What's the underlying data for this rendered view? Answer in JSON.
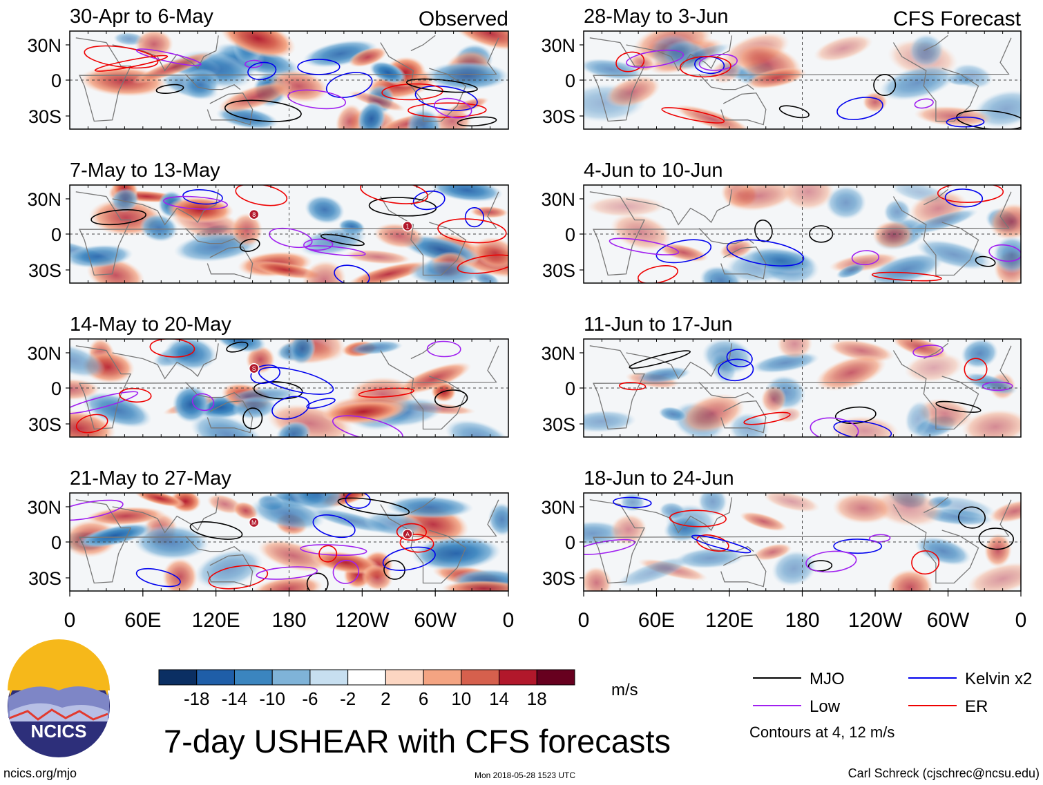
{
  "figure": {
    "main_title": "7-day USHEAR with CFS forecasts",
    "observed_label": "Observed",
    "forecast_label": "CFS Forecast",
    "units": "m/s",
    "contour_note": "Contours at 4, 12 m/s",
    "logo_text": "NCICS",
    "site": "ncics.org/mjo",
    "timestamp": "Mon 2018-05-28 1523 UTC",
    "credit": "Carl Schreck (cjschrec@ncsu.edu)"
  },
  "chart_data": {
    "type": "heatmap",
    "variable": "7-day USHEAR anomaly",
    "units": "m/s",
    "ylim": [
      -40,
      40
    ],
    "yticks": [
      "30N",
      "0",
      "30S"
    ],
    "xticks": [
      "0",
      "60E",
      "120E",
      "180",
      "120W",
      "60W",
      "0"
    ],
    "panels": [
      {
        "period": "30-Apr to 6-May",
        "kind": "observed"
      },
      {
        "period": "7-May to 13-May",
        "kind": "observed",
        "storms": [
          "8",
          "1"
        ]
      },
      {
        "period": "14-May to 20-May",
        "kind": "observed",
        "storms": [
          "S"
        ]
      },
      {
        "period": "21-May to 27-May",
        "kind": "observed",
        "storms": [
          "M",
          "A"
        ]
      },
      {
        "period": "28-May to 3-Jun",
        "kind": "forecast"
      },
      {
        "period": "4-Jun to 10-Jun",
        "kind": "forecast"
      },
      {
        "period": "11-Jun to 17-Jun",
        "kind": "forecast"
      },
      {
        "period": "18-Jun to 24-Jun",
        "kind": "forecast"
      }
    ],
    "colorbar": {
      "labels": [
        "-18",
        "-14",
        "-10",
        "-6",
        "-2",
        "2",
        "6",
        "10",
        "14",
        "18"
      ],
      "colors": [
        "#0b2f63",
        "#1f5ea8",
        "#3b85bf",
        "#7fb3d8",
        "#c7dff0",
        "#ffffff",
        "#fcd6c2",
        "#f4a482",
        "#d6604d",
        "#b2182b",
        "#67001f"
      ]
    },
    "legend": [
      {
        "name": "MJO",
        "color": "#000000"
      },
      {
        "name": "Kelvin x2",
        "color": "#0000ee"
      },
      {
        "name": "Low",
        "color": "#a020f0"
      },
      {
        "name": "ER",
        "color": "#ee0000"
      }
    ]
  }
}
